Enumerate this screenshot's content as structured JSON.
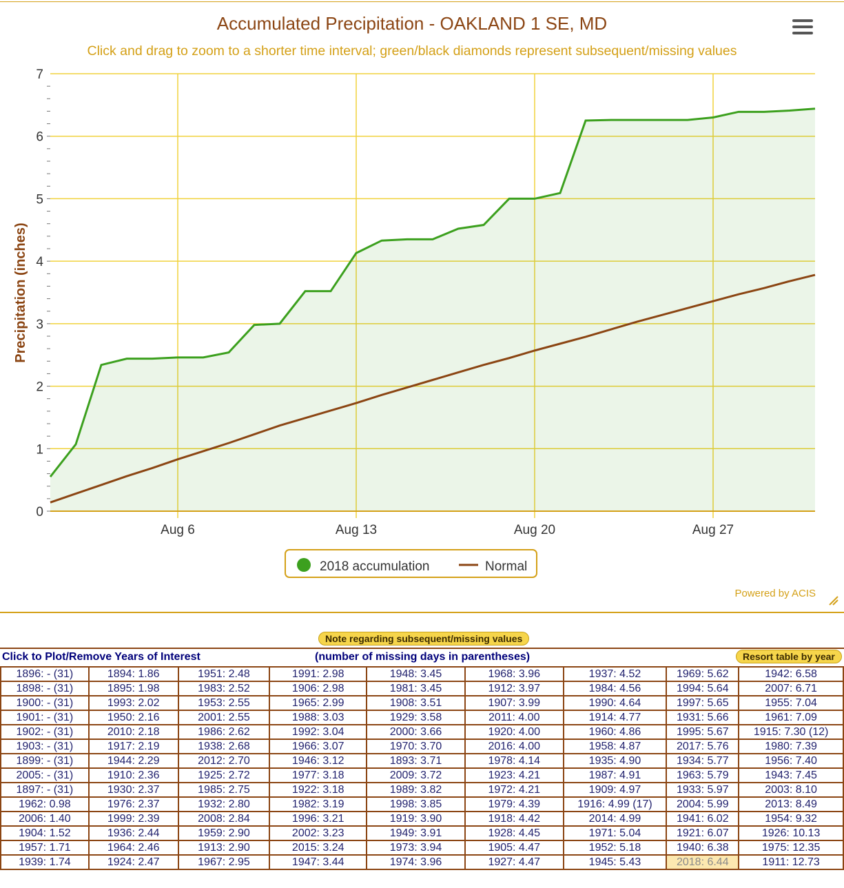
{
  "title": "Accumulated Precipitation - OAKLAND 1 SE, MD",
  "subtitle": "Click and drag to zoom to a shorter time interval; green/black diamonds represent subsequent/missing values",
  "credits": "Powered by ACIS",
  "colors": {
    "accum": "#3ca01e",
    "normal": "#8b4513",
    "title": "#8b4513",
    "subtitle": "#d4a017",
    "grid": "#f0d23c"
  },
  "chart_data": {
    "type": "line",
    "title": "Accumulated Precipitation - OAKLAND 1 SE, MD",
    "ylabel": "Precipitation (inches)",
    "xlabel": "",
    "ylim": [
      0,
      7
    ],
    "yticks": [
      "0",
      "1",
      "2",
      "3",
      "4",
      "5",
      "6",
      "7"
    ],
    "xticks": [
      {
        "day": 6,
        "label": "Aug 6"
      },
      {
        "day": 13,
        "label": "Aug 13"
      },
      {
        "day": 20,
        "label": "Aug 20"
      },
      {
        "day": 27,
        "label": "Aug 27"
      }
    ],
    "x_days": [
      1,
      2,
      3,
      4,
      5,
      6,
      7,
      8,
      9,
      10,
      11,
      12,
      13,
      14,
      15,
      16,
      17,
      18,
      19,
      20,
      21,
      22,
      23,
      24,
      25,
      26,
      27,
      28,
      29,
      30,
      31
    ],
    "series": [
      {
        "name": "2018 accumulation",
        "type": "area",
        "values": [
          0.55,
          1.07,
          2.34,
          2.44,
          2.44,
          2.46,
          2.46,
          2.54,
          2.98,
          3.0,
          3.52,
          3.52,
          4.13,
          4.33,
          4.35,
          4.35,
          4.52,
          4.58,
          5.0,
          5.0,
          5.09,
          6.25,
          6.26,
          6.26,
          6.26,
          6.26,
          6.3,
          6.39,
          6.39,
          6.41,
          6.44
        ]
      },
      {
        "name": "Normal",
        "type": "line",
        "values": [
          0.14,
          0.28,
          0.42,
          0.56,
          0.69,
          0.83,
          0.96,
          1.09,
          1.23,
          1.37,
          1.49,
          1.61,
          1.73,
          1.86,
          1.98,
          2.1,
          2.22,
          2.34,
          2.45,
          2.57,
          2.68,
          2.79,
          2.91,
          3.03,
          3.14,
          3.25,
          3.36,
          3.47,
          3.57,
          3.68,
          3.78
        ]
      }
    ],
    "legend": "bottom-center",
    "grid": true
  },
  "table": {
    "note_button": "Note regarding subsequent/missing values",
    "left_header": "Click to Plot/Remove Years of Interest",
    "center_header": "(number of missing days in parentheses)",
    "resort_button": "Resort table by year",
    "highlight": "2018: 6.44",
    "columns": [
      [
        "1896: - (31)",
        "1898: - (31)",
        "1900: - (31)",
        "1901: - (31)",
        "1902: - (31)",
        "1903: - (31)",
        "1899: - (31)",
        "2005: - (31)",
        "1897: - (31)",
        "1962: 0.98",
        "2006: 1.40",
        "1904: 1.52",
        "1957: 1.71",
        "1939: 1.74"
      ],
      [
        "1894: 1.86",
        "1895: 1.98",
        "1993: 2.02",
        "1950: 2.16",
        "2010: 2.18",
        "1917: 2.19",
        "1944: 2.29",
        "1910: 2.36",
        "1930: 2.37",
        "1976: 2.37",
        "1999: 2.39",
        "1936: 2.44",
        "1964: 2.46",
        "1924: 2.47"
      ],
      [
        "1951: 2.48",
        "1983: 2.52",
        "1953: 2.55",
        "2001: 2.55",
        "1986: 2.62",
        "1938: 2.68",
        "2012: 2.70",
        "1925: 2.72",
        "1985: 2.75",
        "1932: 2.80",
        "2008: 2.84",
        "1959: 2.90",
        "1913: 2.90",
        "1967: 2.95"
      ],
      [
        "1991: 2.98",
        "1906: 2.98",
        "1965: 2.99",
        "1988: 3.03",
        "1992: 3.04",
        "1966: 3.07",
        "1946: 3.12",
        "1977: 3.18",
        "1922: 3.18",
        "1982: 3.19",
        "1996: 3.21",
        "2002: 3.23",
        "2015: 3.24",
        "1947: 3.44"
      ],
      [
        "1948: 3.45",
        "1981: 3.45",
        "1908: 3.51",
        "1929: 3.58",
        "2000: 3.66",
        "1970: 3.70",
        "1893: 3.71",
        "2009: 3.72",
        "1989: 3.82",
        "1998: 3.85",
        "1919: 3.90",
        "1949: 3.91",
        "1973: 3.94",
        "1974: 3.96"
      ],
      [
        "1968: 3.96",
        "1912: 3.97",
        "1907: 3.99",
        "2011: 4.00",
        "1920: 4.00",
        "2016: 4.00",
        "1978: 4.14",
        "1923: 4.21",
        "1972: 4.21",
        "1979: 4.39",
        "1918: 4.42",
        "1928: 4.45",
        "1905: 4.47",
        "1927: 4.47"
      ],
      [
        "1937: 4.52",
        "1984: 4.56",
        "1990: 4.64",
        "1914: 4.77",
        "1960: 4.86",
        "1958: 4.87",
        "1935: 4.90",
        "1987: 4.91",
        "1909: 4.97",
        "1916: 4.99 (17)",
        "2014: 4.99",
        "1971: 5.04",
        "1952: 5.18",
        "1945: 5.43"
      ],
      [
        "1969: 5.62",
        "1994: 5.64",
        "1997: 5.65",
        "1931: 5.66",
        "1995: 5.67",
        "2017: 5.76",
        "1934: 5.77",
        "1963: 5.79",
        "1933: 5.97",
        "2004: 5.99",
        "1941: 6.02",
        "1921: 6.07",
        "1940: 6.38",
        "2018: 6.44"
      ],
      [
        "1942: 6.58",
        "2007: 6.71",
        "1955: 7.04",
        "1961: 7.09",
        "1915: 7.30 (12)",
        "1980: 7.39",
        "1956: 7.40",
        "1943: 7.45",
        "2003: 8.10",
        "2013: 8.49",
        "1954: 9.32",
        "1926: 10.13",
        "1975: 12.35",
        "1911: 12.73"
      ]
    ]
  }
}
